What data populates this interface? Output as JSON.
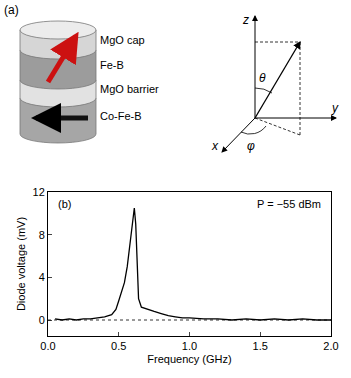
{
  "diagram": {
    "label": "(a)",
    "layers": [
      "MgO cap",
      "Fe-B",
      "MgO barrier",
      "Co-Fe-B"
    ],
    "axes": {
      "z": "z",
      "y": "y",
      "x": "x",
      "polar_angle": "θ",
      "azimuthal_angle": "φ"
    }
  },
  "chart_data": {
    "type": "line",
    "label": "(b)",
    "annotation": "P = −55 dBm",
    "x_label": "Frequency (GHz)",
    "y_label": "Diode voltage (mV)",
    "x": [
      0.05,
      0.1,
      0.15,
      0.2,
      0.25,
      0.3,
      0.35,
      0.4,
      0.45,
      0.48,
      0.5,
      0.52,
      0.54,
      0.56,
      0.58,
      0.6,
      0.61,
      0.62,
      0.63,
      0.64,
      0.66,
      0.7,
      0.75,
      0.8,
      0.85,
      0.9,
      0.95,
      1.0,
      1.1,
      1.2,
      1.3,
      1.4,
      1.5,
      1.6,
      1.7,
      1.8,
      1.9,
      2.0
    ],
    "values": [
      0.1,
      0.0,
      0.1,
      0.0,
      0.1,
      0.1,
      0.2,
      0.3,
      0.5,
      1.0,
      1.8,
      2.6,
      3.5,
      5.0,
      7.0,
      9.5,
      10.5,
      9.0,
      5.0,
      2.0,
      1.2,
      1.0,
      0.8,
      0.6,
      0.4,
      0.3,
      0.2,
      0.2,
      0.1,
      0.1,
      0.0,
      0.1,
      0.0,
      0.1,
      0.0,
      0.1,
      0.0,
      0.0
    ],
    "color": "#000000",
    "zero_line": 0,
    "xlim": [
      0,
      2.0
    ],
    "xticks": [
      {
        "value": 0,
        "label": "0.0"
      },
      {
        "value": 0.5,
        "label": "0.5"
      },
      {
        "value": 1,
        "label": "1.0"
      },
      {
        "value": 1.5,
        "label": "1.5"
      },
      {
        "value": 2,
        "label": "2.0"
      }
    ],
    "ylim": [
      -1.5,
      12
    ],
    "yticks": [
      0,
      4,
      8,
      12
    ],
    "grid": false
  }
}
